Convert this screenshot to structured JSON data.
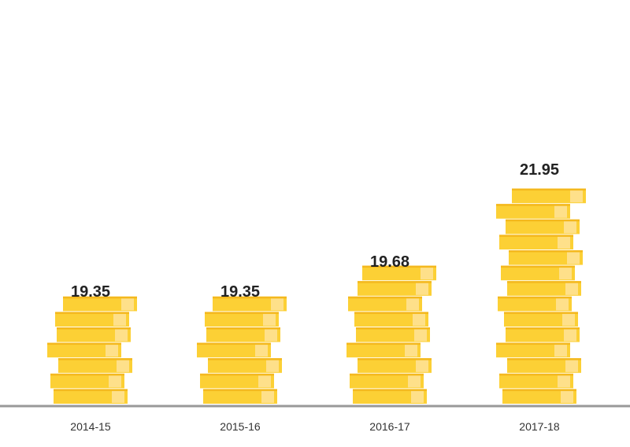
{
  "colors": {
    "coin": "#FCD035",
    "coin_edge": "#F4B81E",
    "coin_highlight": "#FEE08A",
    "baseline": "#999999",
    "value_text": "#222222",
    "category_text": "#333333"
  },
  "chart_data": {
    "type": "bar",
    "style": "stacked coin pictogram",
    "categories": [
      "2014-15",
      "2015-16",
      "2016-17",
      "2017-18"
    ],
    "values": [
      19.35,
      19.35,
      19.68,
      21.95
    ],
    "value_labels": [
      "19.35",
      "19.35",
      "19.68",
      "21.95"
    ],
    "coins_per_bar": [
      7,
      7,
      9,
      14
    ],
    "title": "",
    "xlabel": "",
    "ylabel": "",
    "grid": false,
    "legend": "none"
  }
}
